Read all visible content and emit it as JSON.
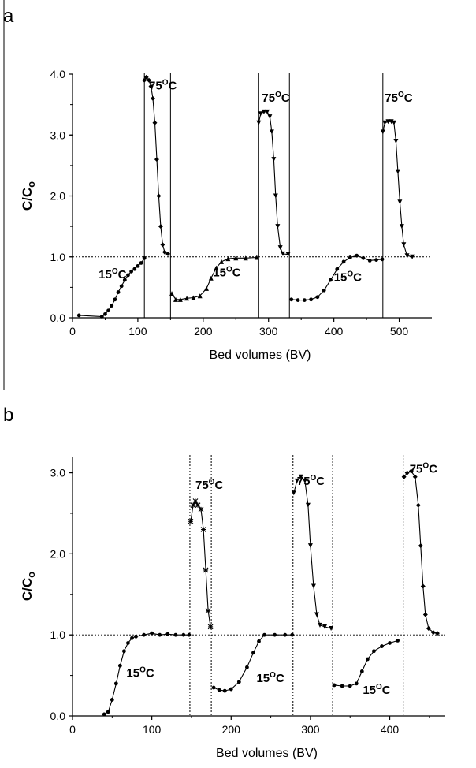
{
  "chart_data": [
    {
      "type": "line",
      "panel_label": "a",
      "xlabel": "Bed volumes (BV)",
      "ylabel": "C/C",
      "ylabel_sub": "o",
      "xlim": [
        0,
        550
      ],
      "ylim": [
        0,
        4.0
      ],
      "x_ticks": [
        {
          "value": 0,
          "label": "0"
        },
        {
          "value": 100,
          "label": "100"
        },
        {
          "value": 200,
          "label": "200"
        },
        {
          "value": 300,
          "label": "300"
        },
        {
          "value": 400,
          "label": "400"
        },
        {
          "value": 500,
          "label": "500"
        }
      ],
      "y_ticks": [
        {
          "value": 0,
          "label": "0.0"
        },
        {
          "value": 1,
          "label": "1.0"
        },
        {
          "value": 2,
          "label": "2.0"
        },
        {
          "value": 3,
          "label": "3.0"
        },
        {
          "value": 4,
          "label": "4.0"
        }
      ],
      "reference_line": 1.0,
      "phase_boundaries": [
        110,
        150,
        285,
        332,
        475
      ],
      "boundary_style": "solid",
      "annotations": [
        {
          "base": "15",
          "sup": "O",
          "unit": "C",
          "x": 40,
          "y": 0.65
        },
        {
          "base": "75",
          "sup": "O",
          "unit": "C",
          "x": 117,
          "y": 3.75
        },
        {
          "base": "15",
          "sup": "O",
          "unit": "C",
          "x": 215,
          "y": 0.68
        },
        {
          "base": "75",
          "sup": "O",
          "unit": "C",
          "x": 290,
          "y": 3.55
        },
        {
          "base": "15",
          "sup": "O",
          "unit": "C",
          "x": 400,
          "y": 0.6
        },
        {
          "base": "75",
          "sup": "O",
          "unit": "C",
          "x": 478,
          "y": 3.55
        }
      ],
      "series": [
        {
          "marker": "circle",
          "points": [
            [
              10,
              0.04
            ],
            [
              45,
              0.02
            ],
            [
              50,
              0.06
            ],
            [
              55,
              0.12
            ],
            [
              60,
              0.2
            ],
            [
              65,
              0.3
            ],
            [
              70,
              0.42
            ],
            [
              75,
              0.52
            ],
            [
              80,
              0.62
            ],
            [
              85,
              0.7
            ],
            [
              90,
              0.76
            ],
            [
              95,
              0.8
            ],
            [
              100,
              0.85
            ],
            [
              105,
              0.9
            ],
            [
              110,
              0.98
            ]
          ]
        },
        {
          "marker": "diamond",
          "points": [
            [
              110,
              3.9
            ],
            [
              113,
              3.95
            ],
            [
              117,
              3.9
            ],
            [
              120,
              3.8
            ],
            [
              123,
              3.6
            ],
            [
              126,
              3.2
            ],
            [
              129,
              2.6
            ],
            [
              132,
              2.0
            ],
            [
              135,
              1.5
            ],
            [
              138,
              1.2
            ],
            [
              141,
              1.08
            ],
            [
              146,
              1.05
            ]
          ]
        },
        {
          "marker": "triangle-up",
          "points": [
            [
              152,
              0.4
            ],
            [
              158,
              0.3
            ],
            [
              165,
              0.3
            ],
            [
              175,
              0.32
            ],
            [
              185,
              0.33
            ],
            [
              195,
              0.36
            ],
            [
              205,
              0.48
            ],
            [
              212,
              0.65
            ],
            [
              220,
              0.82
            ],
            [
              228,
              0.92
            ],
            [
              238,
              0.97
            ],
            [
              250,
              0.98
            ],
            [
              265,
              0.98
            ],
            [
              282,
              0.99
            ]
          ]
        },
        {
          "marker": "triangle-down",
          "points": [
            [
              285,
              3.2
            ],
            [
              288,
              3.35
            ],
            [
              293,
              3.38
            ],
            [
              298,
              3.38
            ],
            [
              302,
              3.3
            ],
            [
              305,
              3.05
            ],
            [
              308,
              2.6
            ],
            [
              311,
              2.0
            ],
            [
              314,
              1.5
            ],
            [
              318,
              1.15
            ],
            [
              322,
              1.05
            ],
            [
              330,
              1.04
            ]
          ]
        },
        {
          "marker": "circle",
          "points": [
            [
              335,
              0.3
            ],
            [
              345,
              0.29
            ],
            [
              355,
              0.29
            ],
            [
              365,
              0.3
            ],
            [
              375,
              0.34
            ],
            [
              385,
              0.45
            ],
            [
              395,
              0.62
            ],
            [
              405,
              0.8
            ],
            [
              415,
              0.92
            ],
            [
              425,
              0.99
            ],
            [
              435,
              1.02
            ],
            [
              445,
              0.98
            ],
            [
              455,
              0.94
            ],
            [
              465,
              0.95
            ],
            [
              474,
              0.96
            ]
          ]
        },
        {
          "marker": "triangle-down",
          "points": [
            [
              475,
              3.05
            ],
            [
              478,
              3.2
            ],
            [
              483,
              3.22
            ],
            [
              488,
              3.22
            ],
            [
              492,
              3.2
            ],
            [
              495,
              2.9
            ],
            [
              498,
              2.4
            ],
            [
              501,
              1.9
            ],
            [
              504,
              1.5
            ],
            [
              507,
              1.2
            ],
            [
              512,
              1.02
            ],
            [
              520,
              1.0
            ]
          ]
        }
      ]
    },
    {
      "type": "line",
      "panel_label": "b",
      "xlabel": "Bed volumes (BV)",
      "ylabel": "C/C",
      "ylabel_sub": "o",
      "xlim": [
        0,
        470
      ],
      "ylim": [
        0,
        3.2
      ],
      "x_ticks": [
        {
          "value": 0,
          "label": "0"
        },
        {
          "value": 100,
          "label": "100"
        },
        {
          "value": 200,
          "label": "200"
        },
        {
          "value": 300,
          "label": "300"
        },
        {
          "value": 400,
          "label": "400"
        }
      ],
      "y_ticks": [
        {
          "value": 0,
          "label": "0.0"
        },
        {
          "value": 1,
          "label": "1.0"
        },
        {
          "value": 2,
          "label": "2.0"
        },
        {
          "value": 3,
          "label": "3.0"
        }
      ],
      "reference_line": 1.0,
      "phase_boundaries": [
        148,
        175,
        278,
        328,
        417
      ],
      "boundary_style": "dotted",
      "annotations": [
        {
          "base": "75",
          "sup": "O",
          "unit": "C",
          "x": 155,
          "y": 2.8
        },
        {
          "base": "75",
          "sup": "O",
          "unit": "C",
          "x": 283,
          "y": 2.85
        },
        {
          "base": "75",
          "sup": "O",
          "unit": "C",
          "x": 425,
          "y": 3.0
        },
        {
          "base": "15",
          "sup": "O",
          "unit": "C",
          "x": 68,
          "y": 0.48
        },
        {
          "base": "15",
          "sup": "O",
          "unit": "C",
          "x": 232,
          "y": 0.42
        },
        {
          "base": "15",
          "sup": "O",
          "unit": "C",
          "x": 366,
          "y": 0.27
        }
      ],
      "series": [
        {
          "marker": "circle",
          "points": [
            [
              40,
              0.02
            ],
            [
              45,
              0.05
            ],
            [
              50,
              0.2
            ],
            [
              55,
              0.4
            ],
            [
              60,
              0.62
            ],
            [
              65,
              0.8
            ],
            [
              70,
              0.9
            ],
            [
              75,
              0.96
            ],
            [
              80,
              0.98
            ],
            [
              90,
              1.0
            ],
            [
              100,
              1.02
            ],
            [
              110,
              1.0
            ],
            [
              120,
              1.01
            ],
            [
              130,
              1.0
            ],
            [
              140,
              1.0
            ],
            [
              147,
              1.0
            ]
          ]
        },
        {
          "marker": "asterisk",
          "points": [
            [
              149,
              2.4
            ],
            [
              152,
              2.6
            ],
            [
              155,
              2.65
            ],
            [
              158,
              2.6
            ],
            [
              162,
              2.55
            ],
            [
              165,
              2.3
            ],
            [
              168,
              1.8
            ],
            [
              171,
              1.3
            ],
            [
              174,
              1.1
            ]
          ]
        },
        {
          "marker": "circle",
          "points": [
            [
              178,
              0.35
            ],
            [
              185,
              0.32
            ],
            [
              192,
              0.31
            ],
            [
              200,
              0.33
            ],
            [
              210,
              0.42
            ],
            [
              220,
              0.6
            ],
            [
              228,
              0.78
            ],
            [
              235,
              0.92
            ],
            [
              242,
              1.0
            ],
            [
              255,
              1.0
            ],
            [
              268,
              1.0
            ],
            [
              277,
              1.0
            ]
          ]
        },
        {
          "marker": "triangle-down",
          "points": [
            [
              279,
              2.75
            ],
            [
              283,
              2.9
            ],
            [
              288,
              2.95
            ],
            [
              293,
              2.9
            ],
            [
              297,
              2.6
            ],
            [
              300,
              2.1
            ],
            [
              304,
              1.6
            ],
            [
              308,
              1.25
            ],
            [
              312,
              1.12
            ],
            [
              318,
              1.1
            ],
            [
              326,
              1.08
            ]
          ]
        },
        {
          "marker": "circle",
          "points": [
            [
              330,
              0.38
            ],
            [
              340,
              0.37
            ],
            [
              350,
              0.37
            ],
            [
              358,
              0.4
            ],
            [
              365,
              0.55
            ],
            [
              372,
              0.7
            ],
            [
              380,
              0.8
            ],
            [
              390,
              0.86
            ],
            [
              400,
              0.9
            ],
            [
              410,
              0.93
            ]
          ]
        },
        {
          "marker": "diamond",
          "points": [
            [
              418,
              2.95
            ],
            [
              422,
              3.0
            ],
            [
              427,
              3.02
            ],
            [
              432,
              2.95
            ],
            [
              436,
              2.6
            ],
            [
              439,
              2.1
            ],
            [
              442,
              1.6
            ],
            [
              445,
              1.25
            ],
            [
              449,
              1.08
            ],
            [
              455,
              1.03
            ],
            [
              460,
              1.02
            ]
          ]
        }
      ]
    }
  ]
}
